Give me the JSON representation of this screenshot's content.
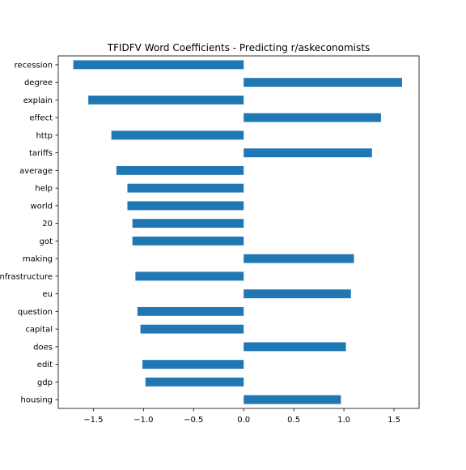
{
  "chart_data": {
    "type": "bar",
    "orientation": "horizontal",
    "title": "TFIDFV Word Coefficients - Predicting r/askeconomists",
    "xlabel": "",
    "ylabel": "",
    "xlim": [
      -1.85,
      1.75
    ],
    "xticks": [
      -1.5,
      -1.0,
      -0.5,
      0.0,
      0.5,
      1.0,
      1.5
    ],
    "xtick_labels": [
      "−1.5",
      "−1.0",
      "−0.5",
      "0.0",
      "0.5",
      "1.0",
      "1.5"
    ],
    "grid": false,
    "legend": "none",
    "bar_color": "#1f77b4",
    "categories": [
      "recession",
      "degree",
      "explain",
      "effect",
      "http",
      "tariffs",
      "average",
      "help",
      "world",
      "20",
      "got",
      "making",
      "infrastructure",
      "eu",
      "question",
      "capital",
      "does",
      "edit",
      "gdp",
      "housing"
    ],
    "values": [
      -1.7,
      1.58,
      -1.55,
      1.37,
      -1.32,
      1.28,
      -1.27,
      -1.16,
      -1.16,
      -1.11,
      -1.11,
      1.1,
      -1.08,
      1.07,
      -1.06,
      -1.03,
      1.02,
      -1.01,
      -0.98,
      0.97
    ]
  }
}
